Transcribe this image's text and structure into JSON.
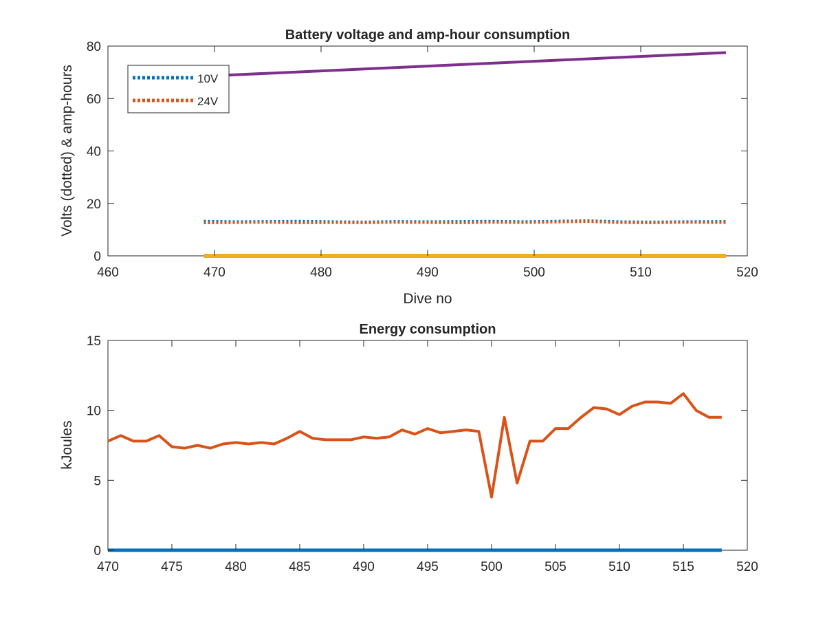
{
  "chart_data": [
    {
      "type": "line",
      "title": "Battery voltage and amp-hour consumption",
      "xlabel": "Dive no",
      "ylabel": "Volts (dotted) & amp-hours",
      "xlim": [
        460,
        520
      ],
      "ylim": [
        0,
        80
      ],
      "xticks": [
        "460",
        "470",
        "480",
        "490",
        "500",
        "510",
        "520"
      ],
      "yticks": [
        "0",
        "20",
        "40",
        "60",
        "80"
      ],
      "grid": false,
      "legend_position": "top-left",
      "colors": {
        "v10": "#0072BD",
        "v24": "#D95319",
        "ah_a": "#EDB120",
        "ah_b": "#7E2F8E"
      },
      "series": [
        {
          "name": "10V",
          "style": "dotted",
          "x": [
            469,
            472,
            475,
            478,
            481,
            484,
            487,
            490,
            493,
            496,
            499,
            502,
            505,
            508,
            511,
            514,
            518
          ],
          "values": [
            13.2,
            13.0,
            13.1,
            13.2,
            13.0,
            12.9,
            13.1,
            13.0,
            13.1,
            13.2,
            13.0,
            13.2,
            13.4,
            13.0,
            12.9,
            13.0,
            13.1
          ]
        },
        {
          "name": "24V",
          "style": "dotted",
          "x": [
            469,
            472,
            475,
            478,
            481,
            484,
            487,
            490,
            493,
            496,
            499,
            502,
            505,
            508,
            511,
            514,
            518
          ],
          "values": [
            12.6,
            12.7,
            12.8,
            12.6,
            12.7,
            12.6,
            12.8,
            12.7,
            12.6,
            12.8,
            12.7,
            12.9,
            13.1,
            12.7,
            12.6,
            12.8,
            12.7
          ]
        },
        {
          "style": "solid",
          "x": [
            469,
            518
          ],
          "values": [
            0,
            0
          ]
        },
        {
          "style": "solid",
          "x": [
            469,
            518
          ],
          "values": [
            68.5,
            77.5
          ]
        }
      ]
    },
    {
      "type": "line",
      "title": "Energy consumption",
      "xlabel": "",
      "ylabel": "kJoules",
      "xlim": [
        470,
        520
      ],
      "ylim": [
        0,
        15
      ],
      "xticks": [
        "470",
        "475",
        "480",
        "485",
        "490",
        "495",
        "500",
        "505",
        "510",
        "515",
        "520"
      ],
      "yticks": [
        "0",
        "5",
        "10",
        "15"
      ],
      "grid": false,
      "colors": {
        "energy": "#D95319",
        "zero": "#0072BD"
      },
      "series": [
        {
          "style": "solid",
          "x": [
            470,
            471,
            472,
            473,
            474,
            475,
            476,
            477,
            478,
            479,
            480,
            481,
            482,
            483,
            484,
            485,
            486,
            487,
            488,
            489,
            490,
            491,
            492,
            493,
            494,
            495,
            496,
            497,
            498,
            499,
            500,
            501,
            502,
            503,
            504,
            505,
            506,
            507,
            508,
            509,
            510,
            511,
            512,
            513,
            514,
            515,
            516,
            517,
            518
          ],
          "values": [
            7.8,
            8.2,
            7.8,
            7.8,
            8.2,
            7.4,
            7.3,
            7.5,
            7.3,
            7.6,
            7.7,
            7.6,
            7.7,
            7.6,
            8.0,
            8.5,
            8.0,
            7.9,
            7.9,
            7.9,
            8.1,
            8.0,
            8.1,
            8.6,
            8.3,
            8.7,
            8.4,
            8.5,
            8.6,
            8.5,
            3.8,
            9.5,
            4.8,
            7.8,
            7.8,
            8.7,
            8.7,
            9.5,
            10.2,
            10.1,
            9.7,
            10.3,
            10.6,
            10.6,
            10.5,
            11.2,
            10.0,
            9.5,
            9.5
          ]
        },
        {
          "style": "solid",
          "x": [
            470,
            518
          ],
          "values": [
            0,
            0
          ]
        }
      ]
    }
  ]
}
